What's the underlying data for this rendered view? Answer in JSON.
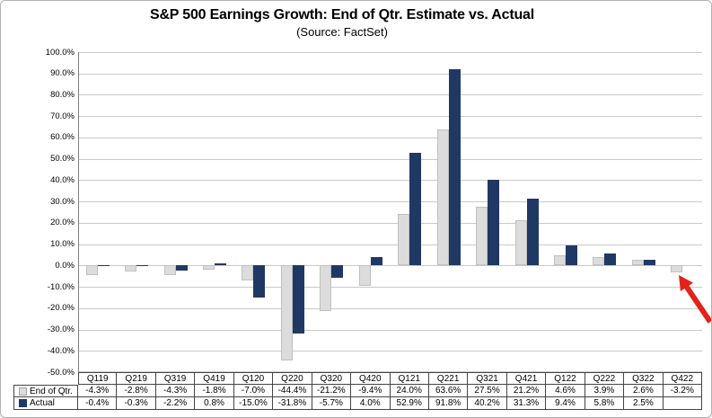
{
  "title": "S&P 500 Earnings Growth: End of Qtr. Estimate vs. Actual",
  "subtitle": "(Source: FactSet)",
  "chart_data": {
    "type": "bar",
    "categories": [
      "Q119",
      "Q219",
      "Q319",
      "Q419",
      "Q120",
      "Q220",
      "Q320",
      "Q420",
      "Q121",
      "Q221",
      "Q321",
      "Q421",
      "Q122",
      "Q222",
      "Q322",
      "Q422"
    ],
    "series": [
      {
        "name": "End of Qtr.",
        "color": "#dcdcdc",
        "values": [
          -4.3,
          -2.8,
          -4.3,
          -1.8,
          -7.0,
          -44.4,
          -21.2,
          -9.4,
          24.0,
          63.6,
          27.5,
          21.2,
          4.6,
          3.9,
          2.6,
          -3.2
        ]
      },
      {
        "name": "Actual",
        "color": "#203864",
        "values": [
          -0.4,
          -0.3,
          -2.2,
          0.8,
          -15.0,
          -31.8,
          -5.7,
          4.0,
          52.9,
          91.8,
          40.2,
          31.3,
          9.4,
          5.8,
          2.5,
          null
        ]
      }
    ],
    "ylim": [
      -50,
      100
    ],
    "ytick_step": 10,
    "ytick_labels": [
      "100.0%",
      "90.0%",
      "80.0%",
      "70.0%",
      "60.0%",
      "50.0%",
      "40.0%",
      "30.0%",
      "20.0%",
      "10.0%",
      "0.0%",
      "-10.0%",
      "-20.0%",
      "-30.0%",
      "-40.0%",
      "-50.0%"
    ],
    "grid": true,
    "legend_position": "table-left",
    "annotation": {
      "type": "arrow",
      "color": "#e2231a",
      "points_at": "Q422 End of Qtr. bar"
    }
  },
  "table": {
    "columns": [
      "Q119",
      "Q219",
      "Q319",
      "Q419",
      "Q120",
      "Q220",
      "Q320",
      "Q420",
      "Q121",
      "Q221",
      "Q321",
      "Q421",
      "Q122",
      "Q222",
      "Q322",
      "Q422"
    ],
    "rows": [
      {
        "label": "End of Qtr.",
        "marker_color": "#dcdcdc",
        "marker_border": "#a6a6a6",
        "values": [
          "-4.3%",
          "-2.8%",
          "-4.3%",
          "-1.8%",
          "-7.0%",
          "-44.4%",
          "-21.2%",
          "-9.4%",
          "24.0%",
          "63.6%",
          "27.5%",
          "21.2%",
          "4.6%",
          "3.9%",
          "2.6%",
          "-3.2%"
        ]
      },
      {
        "label": "Actual",
        "marker_color": "#203864",
        "marker_border": "#203864",
        "values": [
          "-0.4%",
          "-0.3%",
          "-2.2%",
          "0.8%",
          "-15.0%",
          "-31.8%",
          "-5.7%",
          "4.0%",
          "52.9%",
          "91.8%",
          "40.2%",
          "31.3%",
          "9.4%",
          "5.8%",
          "2.5%",
          ""
        ]
      }
    ]
  }
}
